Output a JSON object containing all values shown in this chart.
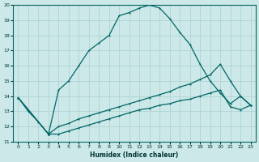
{
  "xlabel": "Humidex (Indice chaleur)",
  "bg_color": "#cce8e8",
  "line_color": "#006666",
  "grid_color": "#aacfcf",
  "xlim": [
    -0.5,
    23.5
  ],
  "ylim": [
    11,
    20
  ],
  "xticks": [
    0,
    1,
    2,
    3,
    4,
    5,
    6,
    7,
    8,
    9,
    10,
    11,
    12,
    13,
    14,
    15,
    16,
    17,
    18,
    19,
    20,
    21,
    22,
    23
  ],
  "yticks": [
    11,
    12,
    13,
    14,
    15,
    16,
    17,
    18,
    19,
    20
  ],
  "line1_x": [
    0,
    1,
    2,
    3,
    4,
    5,
    6,
    7,
    8,
    9,
    10,
    11,
    12,
    13,
    14,
    15,
    16,
    17,
    18,
    19,
    20,
    21,
    22,
    23
  ],
  "line1_y": [
    13.9,
    13.0,
    12.3,
    11.5,
    14.4,
    15.0,
    16.0,
    17.0,
    17.5,
    18.0,
    19.3,
    19.5,
    19.8,
    20.0,
    19.8,
    19.1,
    18.2,
    17.4,
    16.1,
    15.0,
    14.2,
    13.5,
    14.0,
    13.4
  ],
  "line2_x": [
    0,
    3,
    4,
    5,
    6,
    7,
    8,
    9,
    10,
    11,
    12,
    13,
    14,
    15,
    16,
    17,
    18,
    19,
    20,
    21,
    22,
    23
  ],
  "line2_y": [
    13.9,
    11.5,
    12.0,
    12.2,
    12.5,
    12.7,
    12.9,
    13.1,
    13.3,
    13.5,
    13.7,
    13.9,
    14.1,
    14.3,
    14.6,
    14.8,
    15.1,
    15.4,
    16.1,
    15.0,
    14.0,
    13.4
  ],
  "line3_x": [
    0,
    3,
    4,
    5,
    6,
    7,
    8,
    9,
    10,
    11,
    12,
    13,
    14,
    15,
    16,
    17,
    18,
    19,
    20,
    21,
    22,
    23
  ],
  "line3_y": [
    13.9,
    11.5,
    11.5,
    11.7,
    11.9,
    12.1,
    12.3,
    12.5,
    12.7,
    12.9,
    13.1,
    13.2,
    13.4,
    13.5,
    13.7,
    13.8,
    14.0,
    14.2,
    14.4,
    13.3,
    13.1,
    13.4
  ]
}
